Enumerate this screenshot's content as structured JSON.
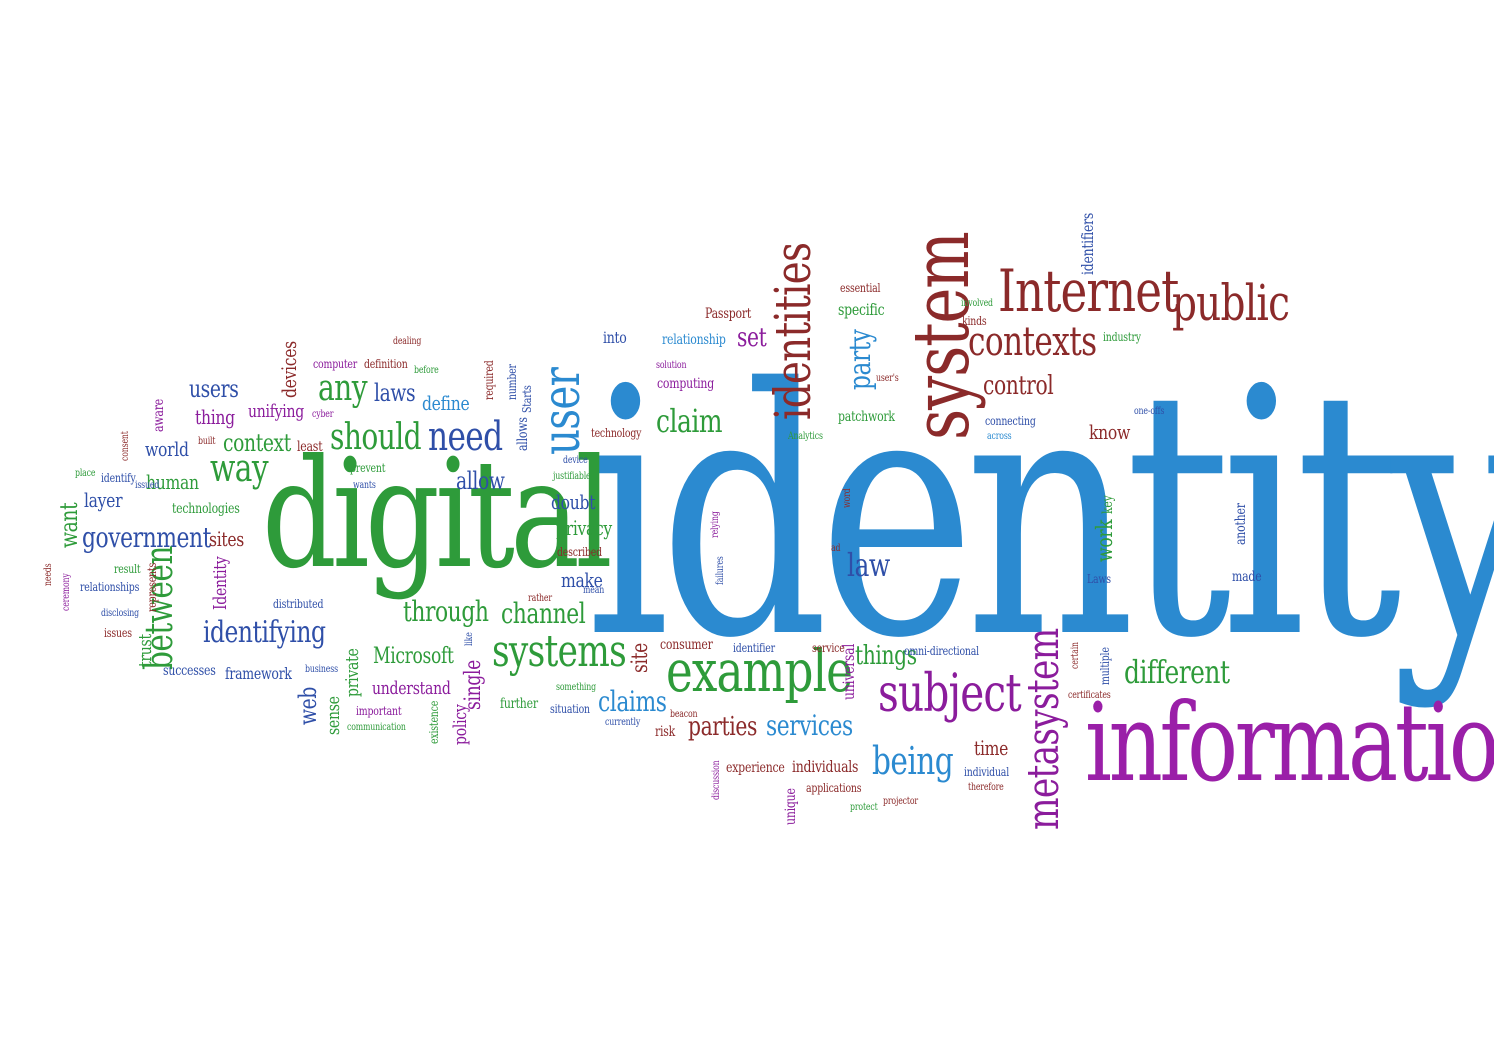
{
  "colors": {
    "blue": "#2b8ad0",
    "green": "#2e9b3a",
    "purple": "#8b1c9c",
    "maroon": "#8b2a2a",
    "navy": "#2f4fa8",
    "violet": "#6a2a9a"
  },
  "words": [
    {
      "text": "identity",
      "color": "#2b8ad0"
    },
    {
      "text": "information",
      "color": "#9a1fa8"
    },
    {
      "text": "digital",
      "color": "#2e9b3a"
    },
    {
      "text": "system",
      "color": "#8b2a2a"
    },
    {
      "text": "Internet",
      "color": "#8b2a2a"
    },
    {
      "text": "public",
      "color": "#8b2a2a"
    },
    {
      "text": "identities",
      "color": "#8b2a2a"
    },
    {
      "text": "user",
      "color": "#2b8ad0"
    },
    {
      "text": "example",
      "color": "#2e9b3a"
    },
    {
      "text": "subject",
      "color": "#8b1c9c"
    },
    {
      "text": "systems",
      "color": "#2e9b3a"
    },
    {
      "text": "metasystem",
      "color": "#8b1c9c"
    },
    {
      "text": "contexts",
      "color": "#8b2a2a"
    },
    {
      "text": "need",
      "color": "#2f4fa8"
    },
    {
      "text": "should",
      "color": "#2e9b3a"
    },
    {
      "text": "way",
      "color": "#2e9b3a"
    },
    {
      "text": "government",
      "color": "#2f4fa8"
    },
    {
      "text": "identifying",
      "color": "#2f4fa8"
    },
    {
      "text": "different",
      "color": "#2e9b3a"
    },
    {
      "text": "being",
      "color": "#2b8ad0"
    },
    {
      "text": "claim",
      "color": "#2e9b3a"
    },
    {
      "text": "services",
      "color": "#2b8ad0"
    },
    {
      "text": "claims",
      "color": "#2b8ad0"
    },
    {
      "text": "parties",
      "color": "#8b2a2a"
    },
    {
      "text": "things",
      "color": "#2e9b3a"
    },
    {
      "text": "between",
      "color": "#2e9b3a"
    },
    {
      "text": "through",
      "color": "#2e9b3a"
    },
    {
      "text": "channel",
      "color": "#2e9b3a"
    },
    {
      "text": "any",
      "color": "#2e9b3a"
    },
    {
      "text": "laws",
      "color": "#2f4fa8"
    },
    {
      "text": "users",
      "color": "#2f4fa8"
    },
    {
      "text": "context",
      "color": "#2e9b3a"
    },
    {
      "text": "control",
      "color": "#8b2a2a"
    },
    {
      "text": "party",
      "color": "#2b8ad0"
    },
    {
      "text": "law",
      "color": "#2f4fa8"
    },
    {
      "text": "set",
      "color": "#8b1c9c"
    },
    {
      "text": "allow",
      "color": "#2f4fa8"
    },
    {
      "text": "world",
      "color": "#2f4fa8"
    },
    {
      "text": "human",
      "color": "#2e9b3a"
    },
    {
      "text": "layer",
      "color": "#2f4fa8"
    },
    {
      "text": "want",
      "color": "#2e9b3a"
    },
    {
      "text": "sites",
      "color": "#8b2a2a"
    },
    {
      "text": "Microsoft",
      "color": "#2e9b3a"
    },
    {
      "text": "single",
      "color": "#8b1c9c"
    },
    {
      "text": "web",
      "color": "#2f4fa8"
    },
    {
      "text": "site",
      "color": "#8b2a2a"
    },
    {
      "text": "make",
      "color": "#2f4fa8"
    },
    {
      "text": "define",
      "color": "#2b8ad0"
    },
    {
      "text": "privacy",
      "color": "#2e9b3a"
    },
    {
      "text": "doubt",
      "color": "#2f4fa8"
    },
    {
      "text": "know",
      "color": "#8b2a2a"
    },
    {
      "text": "work",
      "color": "#2e9b3a"
    },
    {
      "text": "time",
      "color": "#8b2a2a"
    },
    {
      "text": "thing",
      "color": "#8b1c9c"
    },
    {
      "text": "unifying",
      "color": "#8b1c9c"
    },
    {
      "text": "devices",
      "color": "#8b2a2a"
    },
    {
      "text": "trust",
      "color": "#2e9b3a"
    },
    {
      "text": "sense",
      "color": "#2e9b3a"
    },
    {
      "text": "private",
      "color": "#2e9b3a"
    },
    {
      "text": "policy",
      "color": "#8b1c9c"
    },
    {
      "text": "understand",
      "color": "#8b1c9c"
    },
    {
      "text": "framework",
      "color": "#2f4fa8"
    },
    {
      "text": "successes",
      "color": "#2f4fa8"
    },
    {
      "text": "Identity",
      "color": "#8b1c9c"
    },
    {
      "text": "technologies",
      "color": "#2e9b3a"
    },
    {
      "text": "relationship",
      "color": "#2b8ad0"
    },
    {
      "text": "into",
      "color": "#2f4fa8"
    },
    {
      "text": "Passport",
      "color": "#8b2a2a"
    },
    {
      "text": "specific",
      "color": "#2e9b3a"
    },
    {
      "text": "essential",
      "color": "#8b2a2a"
    },
    {
      "text": "patchwork",
      "color": "#2e9b3a"
    },
    {
      "text": "computing",
      "color": "#8b1c9c"
    },
    {
      "text": "consumer",
      "color": "#8b2a2a"
    },
    {
      "text": "identifier",
      "color": "#2f4fa8"
    },
    {
      "text": "service",
      "color": "#8b2a2a"
    },
    {
      "text": "universal",
      "color": "#8b1c9c"
    },
    {
      "text": "omni-directional",
      "color": "#2f4fa8"
    },
    {
      "text": "individuals",
      "color": "#8b2a2a"
    },
    {
      "text": "experience",
      "color": "#8b2a2a"
    },
    {
      "text": "applications",
      "color": "#8b2a2a"
    },
    {
      "text": "individual",
      "color": "#2f4fa8"
    },
    {
      "text": "therefore",
      "color": "#8b2a2a"
    },
    {
      "text": "unique",
      "color": "#8b1c9c"
    },
    {
      "text": "risk",
      "color": "#8b2a2a"
    },
    {
      "text": "further",
      "color": "#2e9b3a"
    },
    {
      "text": "situation",
      "color": "#2f4fa8"
    },
    {
      "text": "currently",
      "color": "#2f4fa8"
    },
    {
      "text": "something",
      "color": "#2e9b3a"
    },
    {
      "text": "beacon",
      "color": "#8b2a2a"
    },
    {
      "text": "existence",
      "color": "#2e9b3a"
    },
    {
      "text": "important",
      "color": "#8b1c9c"
    },
    {
      "text": "communication",
      "color": "#2e9b3a"
    },
    {
      "text": "business",
      "color": "#2f4fa8"
    },
    {
      "text": "distributed",
      "color": "#2f4fa8"
    },
    {
      "text": "rather",
      "color": "#8b2a2a"
    },
    {
      "text": "mean",
      "color": "#2f4fa8"
    },
    {
      "text": "described",
      "color": "#8b2a2a"
    },
    {
      "text": "justifiable",
      "color": "#2e9b3a"
    },
    {
      "text": "device",
      "color": "#2f4fa8"
    },
    {
      "text": "technology",
      "color": "#8b2a2a"
    },
    {
      "text": "relying",
      "color": "#8b1c9c"
    },
    {
      "text": "failures",
      "color": "#2f4fa8"
    },
    {
      "text": "ad",
      "color": "#8b2a2a"
    },
    {
      "text": "word",
      "color": "#8b2a2a"
    },
    {
      "text": "key",
      "color": "#2e9b3a"
    },
    {
      "text": "Laws",
      "color": "#2f4fa8"
    },
    {
      "text": "made",
      "color": "#2f4fa8"
    },
    {
      "text": "another",
      "color": "#2f4fa8"
    },
    {
      "text": "one-offs",
      "color": "#2f4fa8"
    },
    {
      "text": "across",
      "color": "#2b8ad0"
    },
    {
      "text": "connecting",
      "color": "#2f4fa8"
    },
    {
      "text": "industry",
      "color": "#2e9b3a"
    },
    {
      "text": "kinds",
      "color": "#8b2a2a"
    },
    {
      "text": "involved",
      "color": "#2e9b3a"
    },
    {
      "text": "identifiers",
      "color": "#2f4fa8"
    },
    {
      "text": "user's",
      "color": "#8b2a2a"
    },
    {
      "text": "solution",
      "color": "#8b1c9c"
    },
    {
      "text": "Analytics",
      "color": "#2e9b3a"
    },
    {
      "text": "certain",
      "color": "#8b2a2a"
    },
    {
      "text": "multiple",
      "color": "#2f4fa8"
    },
    {
      "text": "certificates",
      "color": "#8b2a2a"
    },
    {
      "text": "protect",
      "color": "#2e9b3a"
    },
    {
      "text": "projector",
      "color": "#8b2a2a"
    },
    {
      "text": "discussion",
      "color": "#8b1c9c"
    },
    {
      "text": "computer",
      "color": "#8b1c9c"
    },
    {
      "text": "definition",
      "color": "#8b2a2a"
    },
    {
      "text": "dealing",
      "color": "#8b2a2a"
    },
    {
      "text": "before",
      "color": "#2e9b3a"
    },
    {
      "text": "required",
      "color": "#8b2a2a"
    },
    {
      "text": "number",
      "color": "#2f4fa8"
    },
    {
      "text": "Starts",
      "color": "#2f4fa8"
    },
    {
      "text": "allows",
      "color": "#2f4fa8"
    },
    {
      "text": "cyber",
      "color": "#8b1c9c"
    },
    {
      "text": "least",
      "color": "#8b2a2a"
    },
    {
      "text": "prevent",
      "color": "#2e9b3a"
    },
    {
      "text": "wants",
      "color": "#2f4fa8"
    },
    {
      "text": "aware",
      "color": "#8b1c9c"
    },
    {
      "text": "built",
      "color": "#8b2a2a"
    },
    {
      "text": "consent",
      "color": "#8b2a2a"
    },
    {
      "text": "place",
      "color": "#2e9b3a"
    },
    {
      "text": "identify",
      "color": "#2f4fa8"
    },
    {
      "text": "issued",
      "color": "#2f4fa8"
    },
    {
      "text": "needs",
      "color": "#8b2a2a"
    },
    {
      "text": "ceremony",
      "color": "#8b1c9c"
    },
    {
      "text": "result",
      "color": "#2e9b3a"
    },
    {
      "text": "relationships",
      "color": "#2f4fa8"
    },
    {
      "text": "represents",
      "color": "#8b2a2a"
    },
    {
      "text": "disclosing",
      "color": "#2f4fa8"
    },
    {
      "text": "issues",
      "color": "#8b2a2a"
    },
    {
      "text": "like",
      "color": "#2f4fa8"
    }
  ]
}
